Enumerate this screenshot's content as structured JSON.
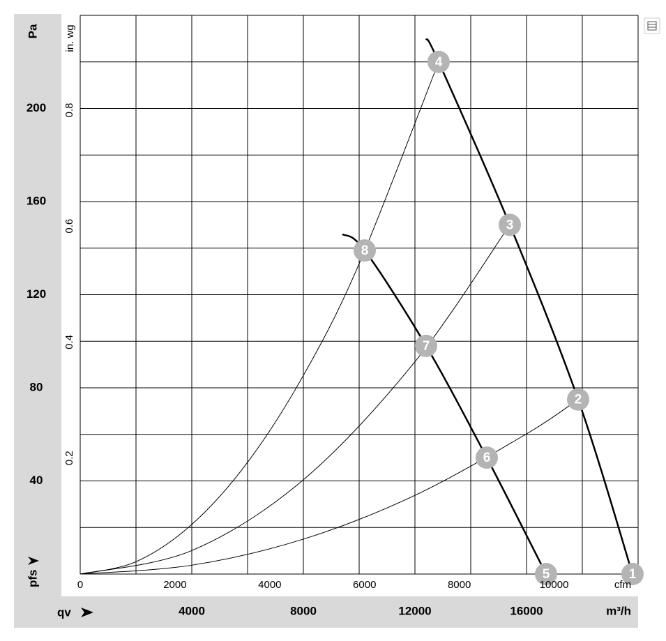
{
  "chart_data": {
    "type": "line",
    "y_label": "Pa",
    "y2_label": "in. wg",
    "x_label": "m³/h",
    "x2_label": "cfm",
    "x_axis_symbol": "qv",
    "y_axis_symbol": "pfs",
    "xlim": [
      0,
      20000
    ],
    "xticks": [
      4000,
      8000,
      12000,
      16000
    ],
    "ylim": [
      0,
      240
    ],
    "yticks": [
      40,
      80,
      120,
      160,
      200
    ],
    "x2lim": [
      0,
      11772
    ],
    "x2ticks": [
      0,
      2000,
      4000,
      6000,
      8000,
      10000
    ],
    "y2lim": [
      0,
      0.9635
    ],
    "y2ticks": [
      0.2,
      0.4,
      0.6,
      0.8
    ],
    "xgrid": [
      0,
      2000,
      4000,
      6000,
      8000,
      10000,
      12000,
      14000,
      16000,
      18000,
      20000
    ],
    "ygrid": [
      0,
      20,
      40,
      60,
      80,
      100,
      120,
      140,
      160,
      180,
      200,
      220,
      240
    ],
    "series": [
      {
        "color": "#000000",
        "line_width": 2.5,
        "x": [
          12400,
          12850,
          15400,
          17850,
          19800
        ],
        "values": [
          230,
          220,
          150,
          75,
          0
        ]
      },
      {
        "color": "#000000",
        "line_width": 2.5,
        "x": [
          9400,
          10200,
          12400,
          14575,
          16700
        ],
        "values": [
          146,
          139,
          98,
          50,
          0
        ]
      },
      {
        "color": "#000000",
        "line_width": 1,
        "x": [
          0,
          2000,
          4000,
          6000,
          8000,
          10000,
          12850
        ],
        "values": [
          0,
          5.3,
          21.3,
          48,
          85.3,
          133.3,
          220
        ]
      },
      {
        "color": "#000000",
        "line_width": 1,
        "x": [
          0,
          4000,
          8000,
          12000,
          15400
        ],
        "values": [
          0,
          10.1,
          40.5,
          91.2,
          150
        ]
      },
      {
        "color": "#000000",
        "line_width": 1,
        "x": [
          0,
          4000,
          8000,
          12000,
          16000,
          17850
        ],
        "values": [
          0,
          3.8,
          15,
          33.8,
          60.2,
          75
        ]
      }
    ],
    "operating_points": [
      {
        "label": "1",
        "x": 19800,
        "y": 0
      },
      {
        "label": "2",
        "x": 17850,
        "y": 75
      },
      {
        "label": "3",
        "x": 15400,
        "y": 150
      },
      {
        "label": "4",
        "x": 12850,
        "y": 220
      },
      {
        "label": "5",
        "x": 16700,
        "y": 0
      },
      {
        "label": "6",
        "x": 14575,
        "y": 50
      },
      {
        "label": "7",
        "x": 12400,
        "y": 98
      },
      {
        "label": "8",
        "x": 10200,
        "y": 139
      }
    ],
    "marker_color": "#b4b4b4"
  }
}
